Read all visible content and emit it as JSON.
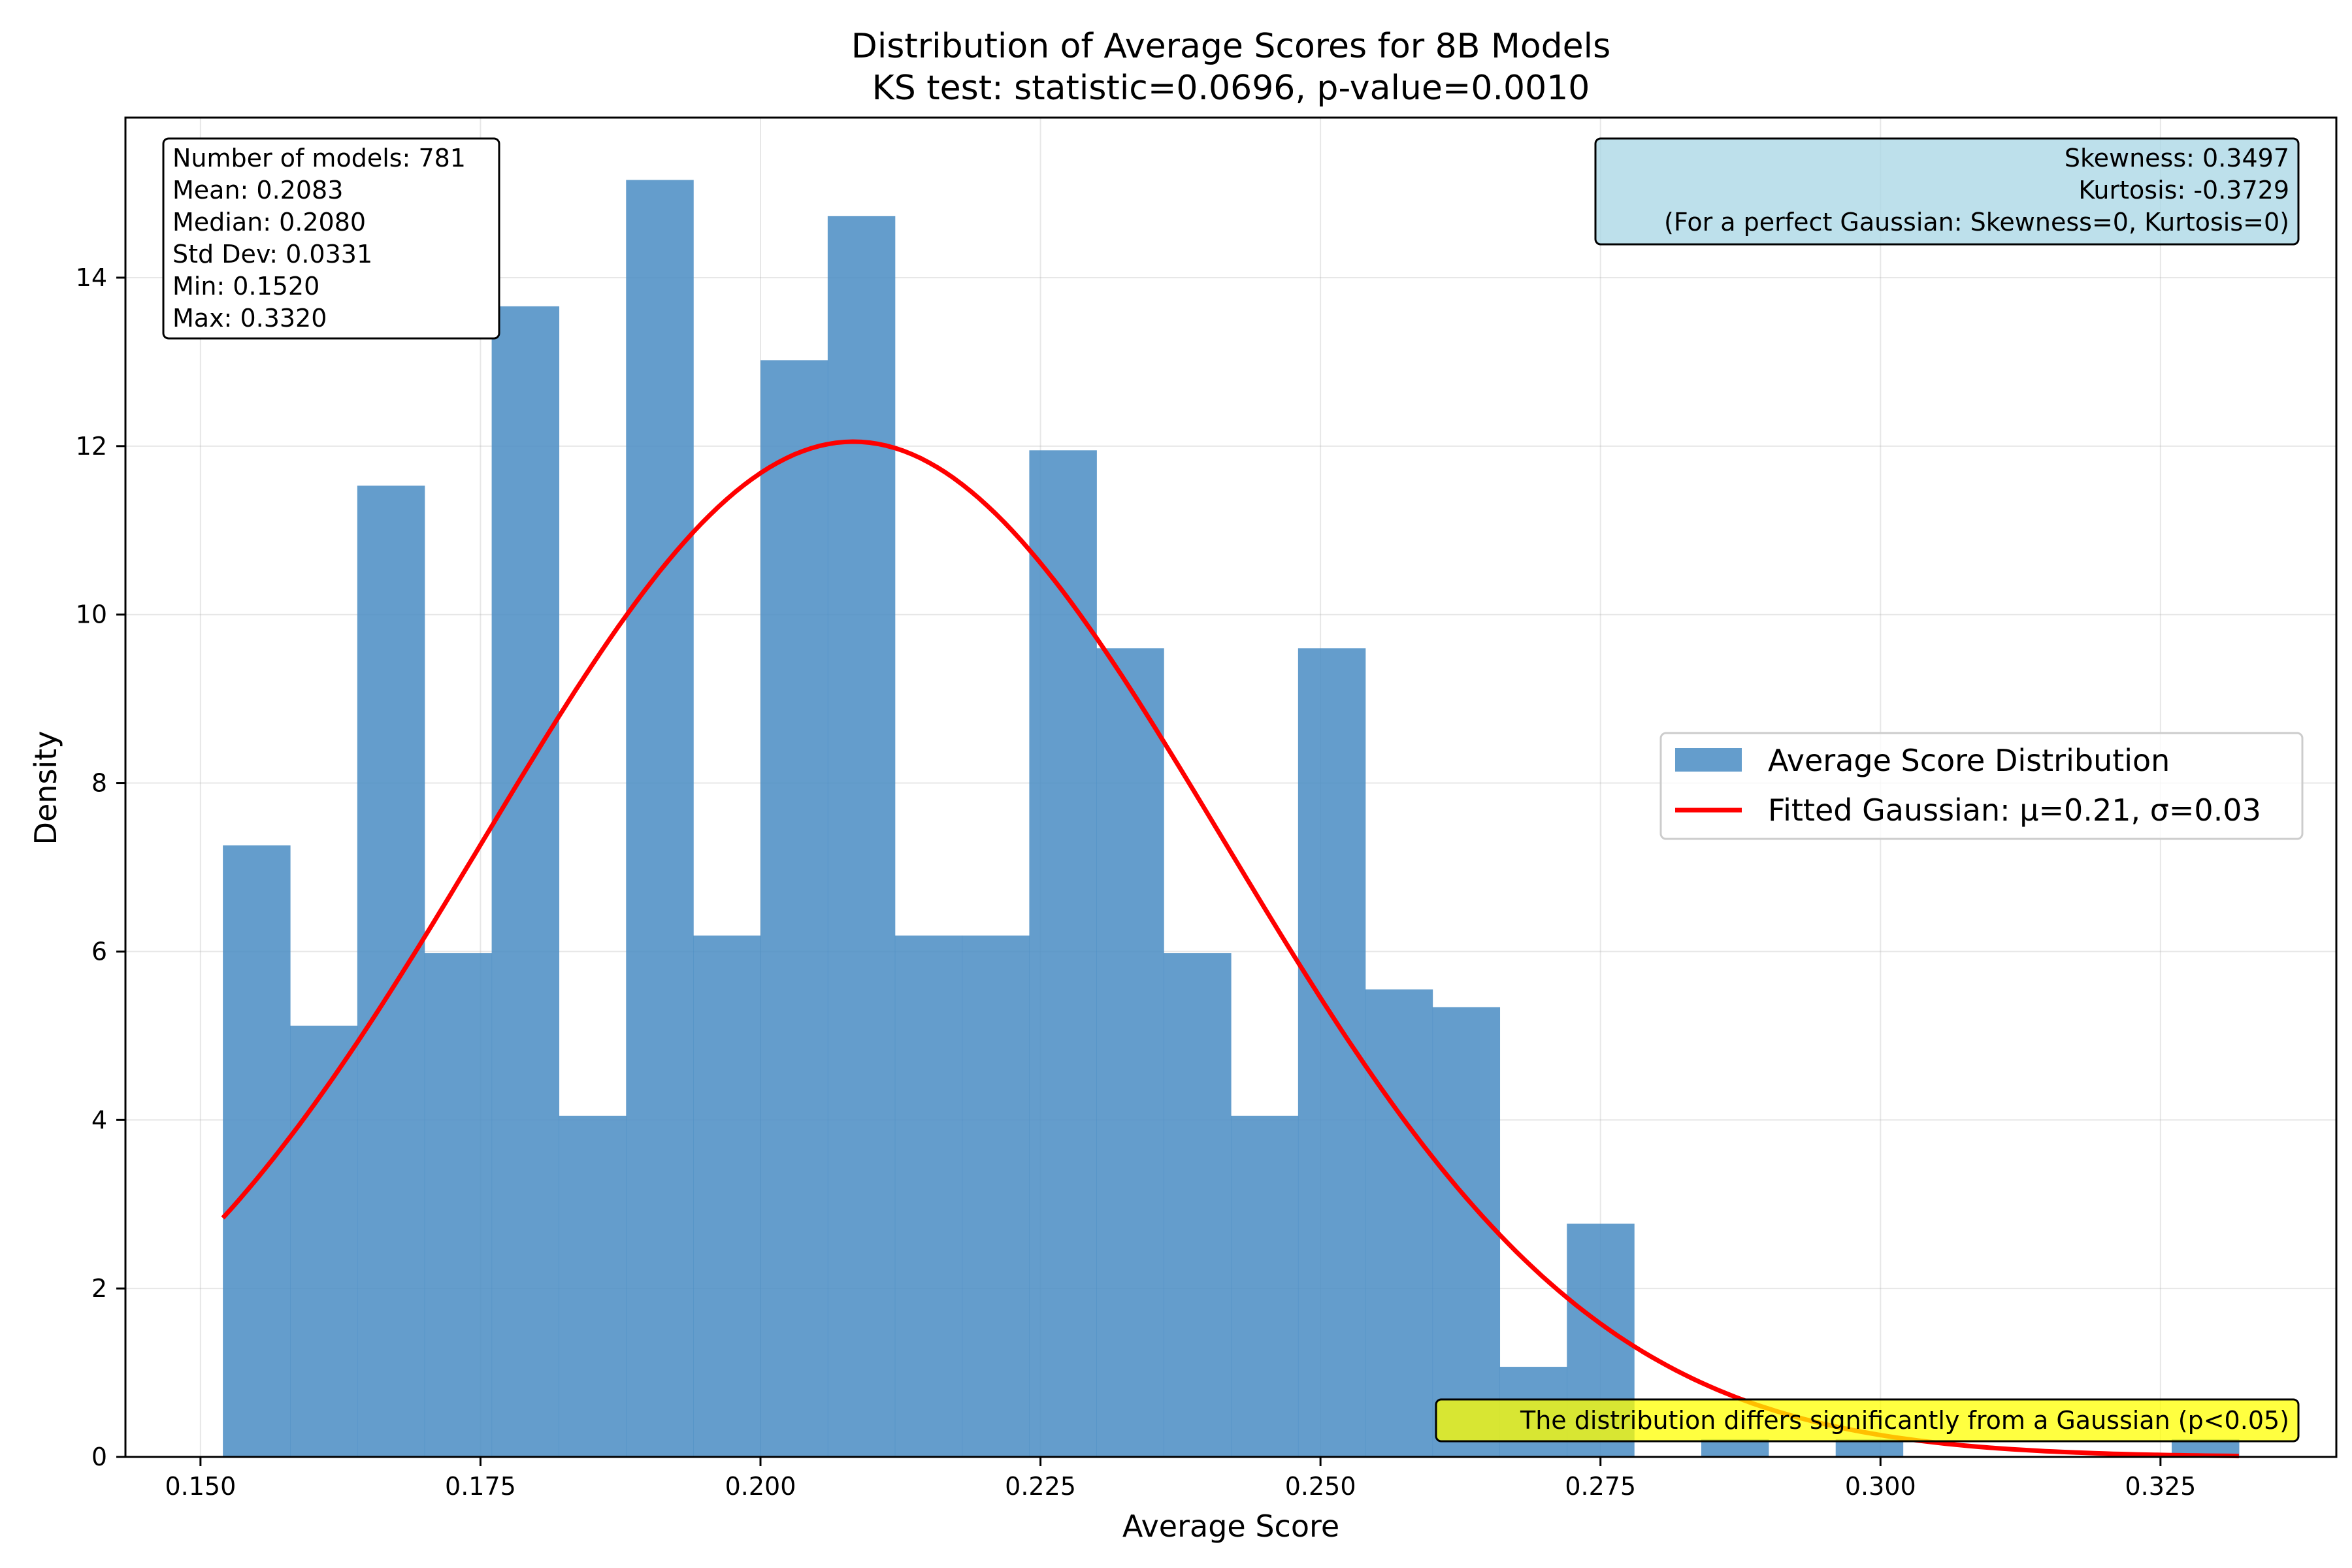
{
  "chart_data": {
    "type": "histogram",
    "title": "Distribution of Average Scores for 8B Models",
    "subtitle": "KS test: statistic=0.0696, p-value=0.0010",
    "xlabel": "Average Score",
    "ylabel": "Density",
    "xlim": [
      0.1433,
      0.3407
    ],
    "ylim": [
      0,
      15.9
    ],
    "xticks": [
      "0.150",
      "0.175",
      "0.200",
      "0.225",
      "0.250",
      "0.275",
      "0.300",
      "0.325"
    ],
    "xtick_values": [
      0.15,
      0.175,
      0.2,
      0.225,
      0.25,
      0.275,
      0.3,
      0.325
    ],
    "yticks": [
      "0",
      "2",
      "4",
      "6",
      "8",
      "10",
      "12",
      "14"
    ],
    "ytick_values": [
      0,
      2,
      4,
      6,
      8,
      10,
      12,
      14
    ],
    "grid": true,
    "bins": {
      "start": 0.152,
      "end": 0.332,
      "count": 30,
      "densities": [
        7.26,
        5.12,
        11.53,
        5.98,
        13.66,
        4.05,
        15.16,
        6.19,
        13.02,
        14.73,
        6.19,
        6.19,
        11.95,
        9.6,
        5.98,
        4.05,
        9.6,
        5.55,
        5.34,
        1.07,
        2.77,
        0.0,
        0.21,
        0.0,
        0.21,
        0.0,
        0.0,
        0.0,
        0.0,
        0.21
      ]
    },
    "series": [
      {
        "name": "Average Score Distribution",
        "kind": "histogram",
        "color": "#4e90c5"
      },
      {
        "name": "Fitted Gaussian: μ=0.21, σ=0.03",
        "kind": "line",
        "color": "#ff0000",
        "mu": 0.2083,
        "sigma": 0.0331,
        "x_range": [
          0.152,
          0.332
        ]
      }
    ],
    "legend": {
      "position": "center-right",
      "entries": [
        "Average Score Distribution",
        "Fitted Gaussian: μ=0.21, σ=0.03"
      ]
    },
    "annotations": {
      "stats_box": {
        "position": "top-left",
        "lines": [
          "Number of models: 781",
          "Mean: 0.2083",
          "Median: 0.2080",
          "Std Dev: 0.0331",
          "Min: 0.1520",
          "Max: 0.3320"
        ]
      },
      "shape_box": {
        "position": "top-right",
        "color": "#add8e6",
        "lines": [
          "Skewness: 0.3497",
          "Kurtosis: -0.3729",
          "(For a perfect Gaussian: Skewness=0, Kurtosis=0)"
        ]
      },
      "conclusion_box": {
        "position": "bottom-right",
        "color": "#ffff00",
        "text": "The distribution differs significantly from a Gaussian (p<0.05)"
      }
    }
  }
}
